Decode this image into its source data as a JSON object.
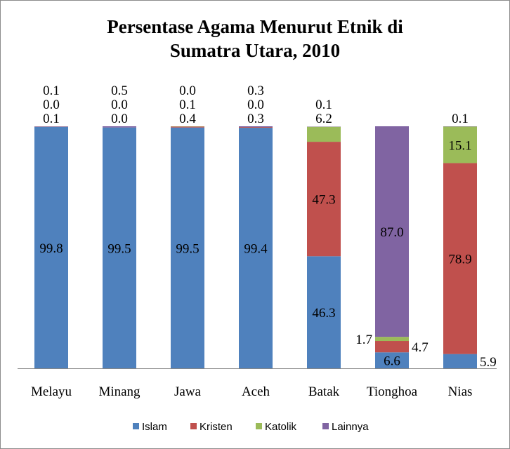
{
  "chart_data": {
    "type": "bar",
    "stacked": true,
    "title": "Persentase Agama Menurut Etnik di Sumatra Utara, 2010",
    "title_lines": [
      "Persentase Agama Menurut Etnik di",
      "Sumatra Utara, 2010"
    ],
    "categories": [
      "Melayu",
      "Minang",
      "Jawa",
      "Aceh",
      "Batak",
      "Tionghoa",
      "Nias"
    ],
    "series": [
      {
        "name": "Islam",
        "color": "#4f81bd",
        "values": [
          99.8,
          99.5,
          99.5,
          99.4,
          46.3,
          6.6,
          5.9
        ]
      },
      {
        "name": "Kristen",
        "color": "#c0504d",
        "values": [
          0.1,
          0.0,
          0.4,
          0.3,
          47.3,
          4.7,
          78.9
        ]
      },
      {
        "name": "Katolik",
        "color": "#9bbb59",
        "values": [
          0.0,
          0.0,
          0.1,
          0.0,
          6.2,
          1.7,
          15.1
        ]
      },
      {
        "name": "Lainnya",
        "color": "#8064a2",
        "values": [
          0.1,
          0.5,
          0.0,
          0.3,
          0.1,
          87.0,
          0.1
        ]
      }
    ],
    "ylim": [
      0,
      100
    ],
    "yaxis_visible": false,
    "grid": false,
    "data_labels": true,
    "legend_position": "bottom"
  }
}
